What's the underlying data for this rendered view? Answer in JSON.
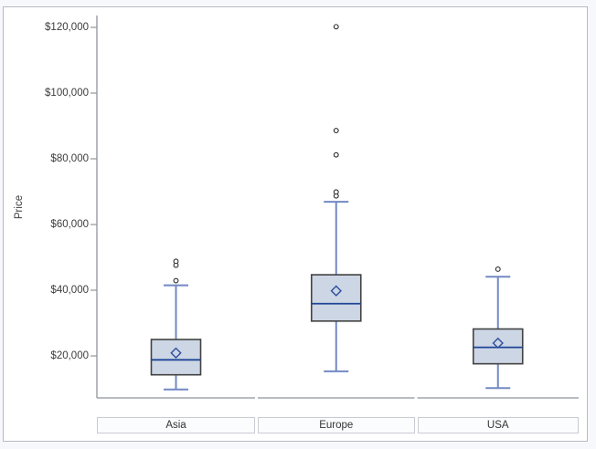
{
  "chart_data": {
    "type": "box",
    "title": "",
    "xlabel": "",
    "ylabel": "Price",
    "grid": false,
    "legend": "none",
    "ylim": [
      7200,
      123600
    ],
    "y_ticks": [
      {
        "label": "$120,000",
        "value": 120000
      },
      {
        "label": "$100,000",
        "value": 100000
      },
      {
        "label": "$80,000",
        "value": 80000
      },
      {
        "label": "$60,000",
        "value": 60000
      },
      {
        "label": "$40,000",
        "value": 40000
      },
      {
        "label": "$20,000",
        "value": 20000
      }
    ],
    "categories": [
      "Asia",
      "Europe",
      "USA"
    ],
    "series": [
      {
        "category": "Asia",
        "whisker_low": 9800,
        "q1": 14250,
        "median": 18800,
        "mean": 20900,
        "q3": 25000,
        "whisker_high": 41500,
        "outliers": [
          42900,
          47600,
          48800
        ]
      },
      {
        "category": "Europe",
        "whisker_low": 15300,
        "q1": 30600,
        "median": 35900,
        "mean": 39800,
        "q3": 44700,
        "whisker_high": 66900,
        "outliers": [
          68700,
          69900,
          81200,
          88600,
          120200
        ]
      },
      {
        "category": "USA",
        "whisker_low": 10200,
        "q1": 17600,
        "median": 22600,
        "mean": 23900,
        "q3": 28200,
        "whisker_high": 44100,
        "outliers": [
          46400
        ]
      }
    ],
    "style": {
      "page_bg": "#f7f8fc",
      "figure_bg": "#ffffff",
      "figure_border": "#b8bac3",
      "axis_color": "#8f959b",
      "box_fill": "#ccd6e4",
      "box_border": "#424242",
      "median_color": "#1f4596",
      "whisker_color": "#7289c4",
      "mean_marker_color": "#2f4da0",
      "outlier_color": "#2b2b2b",
      "cell_fill": "#fbfcfe",
      "cell_border": "#c9cbd3",
      "text_color": "#3c3c3c",
      "mean_marker": "diamond-outline",
      "outlier_marker": "circle-outline"
    }
  }
}
